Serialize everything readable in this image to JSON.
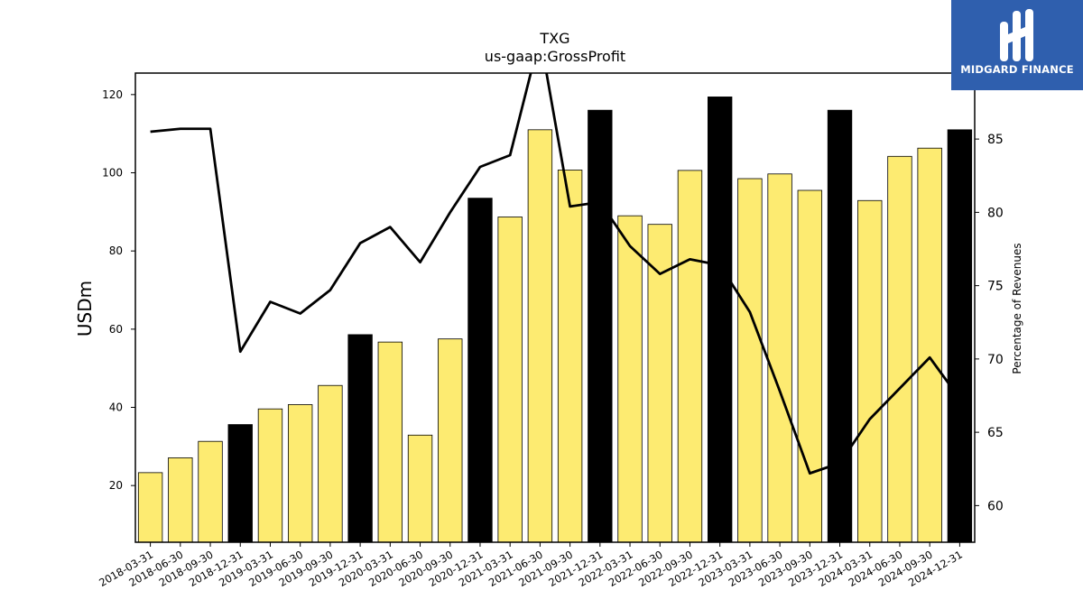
{
  "chart_data": {
    "type": "bar",
    "title": "TXG",
    "subtitle": "us-gaap:GrossProfit",
    "ylabel": "USDm",
    "y2label": "Percentage of Revenues",
    "ylim": [
      5.5,
      125.5
    ],
    "y2lim": [
      57.5,
      89.5
    ],
    "yticks": [
      20,
      40,
      60,
      80,
      100,
      120
    ],
    "y2ticks": [
      60,
      65,
      70,
      75,
      80,
      85
    ],
    "categories": [
      "2018-03-31",
      "2018-06-30",
      "2018-09-30",
      "2018-12-31",
      "2019-03-31",
      "2019-06-30",
      "2019-09-30",
      "2019-12-31",
      "2020-03-31",
      "2020-06-30",
      "2020-09-30",
      "2020-12-31",
      "2021-03-31",
      "2021-06-30",
      "2021-09-30",
      "2021-12-31",
      "2022-03-31",
      "2022-06-30",
      "2022-09-30",
      "2022-12-31",
      "2023-03-31",
      "2023-06-30",
      "2023-09-30",
      "2023-12-31",
      "2024-03-31",
      "2024-06-30",
      "2024-09-30",
      "2024-12-31"
    ],
    "series": [
      {
        "kind": "bar",
        "values": [
          23.3,
          27.1,
          31.3,
          35.6,
          39.6,
          40.7,
          45.6,
          58.6,
          56.7,
          32.9,
          57.5,
          93.5,
          88.7,
          111.0,
          100.7,
          116.0,
          89.0,
          86.8,
          100.6,
          119.4,
          98.5,
          99.7,
          95.5,
          116.0,
          92.9,
          104.2,
          106.3,
          111.0
        ],
        "highlight": [
          false,
          false,
          false,
          true,
          false,
          false,
          false,
          true,
          false,
          false,
          false,
          true,
          false,
          false,
          false,
          true,
          false,
          false,
          false,
          true,
          false,
          false,
          false,
          true,
          false,
          false,
          false,
          true
        ]
      },
      {
        "kind": "line",
        "axis": "right",
        "values": [
          85.5,
          85.7,
          85.7,
          70.5,
          73.9,
          73.1,
          74.7,
          77.9,
          79.0,
          76.6,
          80.0,
          83.1,
          83.9,
          92.0,
          80.4,
          80.7,
          77.7,
          75.8,
          76.8,
          76.4,
          73.2,
          67.8,
          62.2,
          62.9,
          65.9,
          68.0,
          70.1,
          67.3
        ]
      }
    ],
    "colors": {
      "bar": "#fdeb71",
      "highlight_bar": "#000000",
      "line": "#000000"
    },
    "grid": false,
    "legend": "none"
  },
  "logo": {
    "text": "MIDGARD FINANCE",
    "color": "#2f5fae"
  }
}
